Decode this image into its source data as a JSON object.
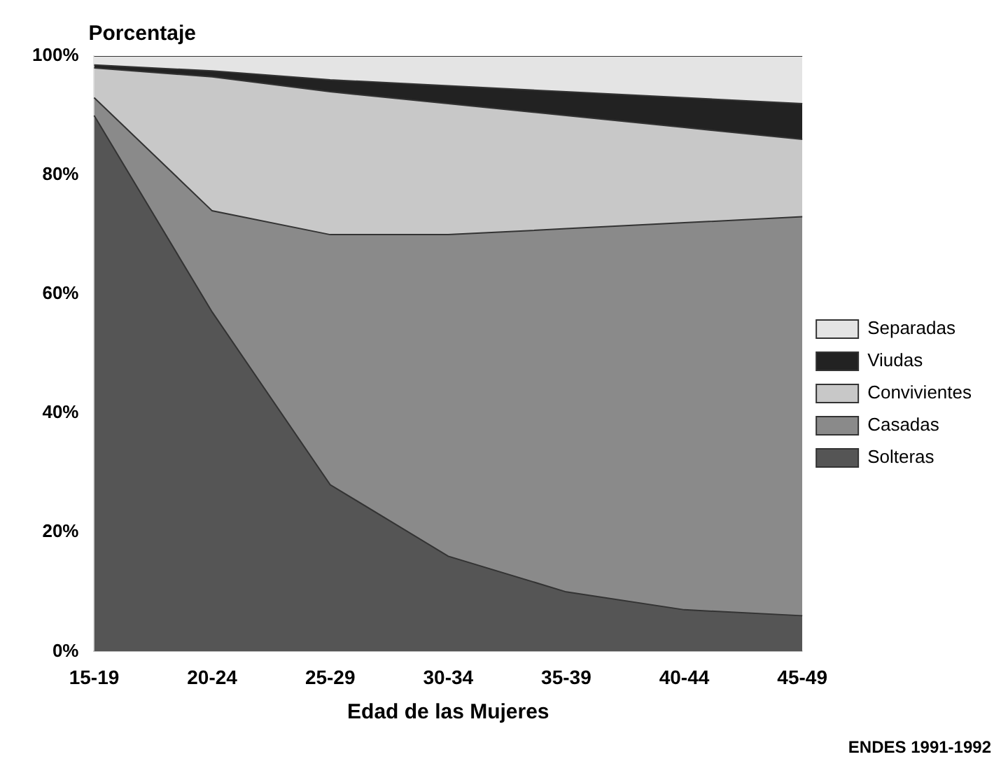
{
  "chart_data": {
    "type": "area",
    "stacked": true,
    "ylabel": "Porcentaje",
    "xlabel": "Edad de las Mujeres",
    "categories": [
      "15-19",
      "20-24",
      "25-29",
      "30-34",
      "35-39",
      "40-44",
      "45-49"
    ],
    "series": [
      {
        "name": "Solteras",
        "color": "#555555",
        "values": [
          90,
          57,
          28,
          16,
          10,
          7,
          6
        ]
      },
      {
        "name": "Casadas",
        "color": "#8a8a8a",
        "values": [
          3,
          17,
          42,
          54,
          61,
          65,
          67
        ]
      },
      {
        "name": "Convivientes",
        "color": "#c8c8c8",
        "values": [
          5,
          22.5,
          24,
          22,
          19,
          16,
          13
        ]
      },
      {
        "name": "Viudas",
        "color": "#222222",
        "values": [
          0.5,
          1,
          2,
          3,
          4,
          5,
          6
        ]
      },
      {
        "name": "Separadas",
        "color": "#e4e4e4",
        "values": [
          1.5,
          2.5,
          4,
          5,
          6,
          7,
          8
        ]
      }
    ],
    "ylim": [
      0,
      100
    ],
    "yticks": [
      {
        "value": 0,
        "label": "0%"
      },
      {
        "value": 20,
        "label": "20%"
      },
      {
        "value": 40,
        "label": "40%"
      },
      {
        "value": 60,
        "label": "60%"
      },
      {
        "value": 80,
        "label": "80%"
      },
      {
        "value": 100,
        "label": "100%"
      }
    ],
    "grid": false,
    "legend": "right",
    "annotations": [
      "ENDES 1991-1992"
    ]
  }
}
